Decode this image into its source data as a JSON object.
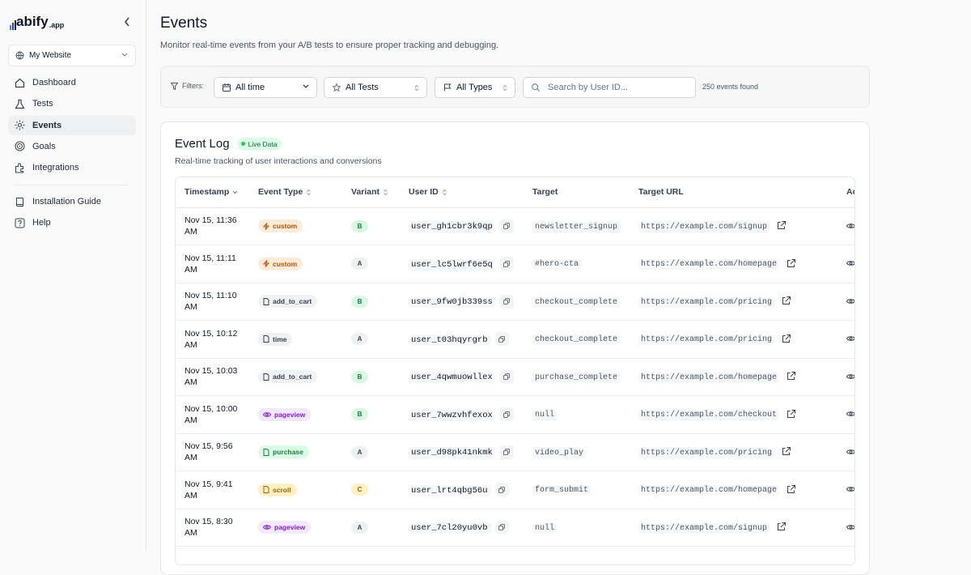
{
  "sidebar": {
    "logo": "abify",
    "logo_suffix": ".app",
    "site": "My Website",
    "nav": [
      {
        "label": "Dashboard",
        "active": false
      },
      {
        "label": "Tests",
        "active": false
      },
      {
        "label": "Events",
        "active": true
      },
      {
        "label": "Goals",
        "active": false
      },
      {
        "label": "Integrations",
        "active": false
      }
    ],
    "nav_secondary": [
      {
        "label": "Installation Guide",
        "active": false
      },
      {
        "label": "Help",
        "active": false
      }
    ]
  },
  "header": {
    "title": "Events",
    "subtitle": "Monitor real-time events from your A/B tests to ensure proper tracking and debugging."
  },
  "filters": {
    "label": "Filters:",
    "time": "All time",
    "tests": "All Tests",
    "types": "All Types",
    "search_placeholder": "Search by User ID...",
    "count": "250 events found"
  },
  "event_log": {
    "title": "Event Log",
    "badge": "Live Data",
    "subtitle": "Real-time tracking of user interactions and conversions",
    "columns": [
      "Timestamp",
      "Event Type",
      "Variant",
      "User ID",
      "Target",
      "Target URL",
      "Actions"
    ],
    "action_label": "View",
    "event_type_styles": {
      "custom": {
        "bg": "#fdecd9",
        "fg": "#b45309"
      },
      "add_to_cart": {
        "bg": "#f1f2f4",
        "fg": "#374151"
      },
      "time": {
        "bg": "#f1f2f4",
        "fg": "#374151"
      },
      "pageview": {
        "bg": "#f3e8fd",
        "fg": "#7e22ce"
      },
      "purchase": {
        "bg": "#dcfce7",
        "fg": "#15803d"
      },
      "scroll": {
        "bg": "#fdf0c4",
        "fg": "#a16207"
      }
    },
    "variant_styles": {
      "A": {
        "bg": "#eef0f2",
        "fg": "#374151"
      },
      "B": {
        "bg": "#d9f7e4",
        "fg": "#15803d"
      },
      "C": {
        "bg": "#fdf0c4",
        "fg": "#a16207"
      }
    },
    "rows": [
      {
        "timestamp": "Nov 15, 11:36 AM",
        "event_type": "custom",
        "variant": "B",
        "user_id": "user_gh1cbr3k9qp",
        "target": "newsletter_signup",
        "url": "https://example.com/signup"
      },
      {
        "timestamp": "Nov 15, 11:11 AM",
        "event_type": "custom",
        "variant": "A",
        "user_id": "user_lc5lwrf6e5q",
        "target": "#hero-cta",
        "url": "https://example.com/homepage"
      },
      {
        "timestamp": "Nov 15, 11:10 AM",
        "event_type": "add_to_cart",
        "variant": "B",
        "user_id": "user_9fw0jb339ss",
        "target": "checkout_complete",
        "url": "https://example.com/pricing"
      },
      {
        "timestamp": "Nov 15, 10:12 AM",
        "event_type": "time",
        "variant": "A",
        "user_id": "user_t03hqyrgrb",
        "target": "checkout_complete",
        "url": "https://example.com/pricing"
      },
      {
        "timestamp": "Nov 15, 10:03 AM",
        "event_type": "add_to_cart",
        "variant": "B",
        "user_id": "user_4qwmuowllex",
        "target": "purchase_complete",
        "url": "https://example.com/homepage"
      },
      {
        "timestamp": "Nov 15, 10:00 AM",
        "event_type": "pageview",
        "variant": "B",
        "user_id": "user_7wwzvhfexox",
        "target": "null",
        "url": "https://example.com/checkout"
      },
      {
        "timestamp": "Nov 15, 9:56 AM",
        "event_type": "purchase",
        "variant": "A",
        "user_id": "user_d98pk41nkmk",
        "target": "video_play",
        "url": "https://example.com/pricing"
      },
      {
        "timestamp": "Nov 15, 9:41 AM",
        "event_type": "scroll",
        "variant": "C",
        "user_id": "user_lrt4qbg56u",
        "target": "form_submit",
        "url": "https://example.com/homepage"
      },
      {
        "timestamp": "Nov 15, 8:30 AM",
        "event_type": "pageview",
        "variant": "A",
        "user_id": "user_7cl20yu0vb",
        "target": "null",
        "url": "https://example.com/signup"
      }
    ]
  }
}
